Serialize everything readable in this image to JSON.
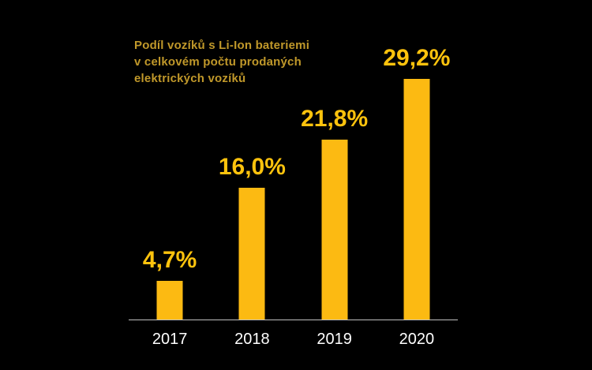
{
  "title": {
    "lines": [
      "Podíl vozíků s Li-Ion bateriemi",
      "v celkovém počtu prodaných",
      "elektrických vozíků"
    ]
  },
  "chart_data": {
    "type": "bar",
    "title": "Podíl vozíků s Li-Ion bateriemi v celkovém počtu prodaných elektrických vozíků",
    "categories": [
      "2017",
      "2018",
      "2019",
      "2020"
    ],
    "values": [
      4.7,
      16.0,
      21.8,
      29.2
    ],
    "value_labels": [
      "4,7%",
      "16,0%",
      "21,8%",
      "29,2%"
    ],
    "xlabel": "",
    "ylabel": "",
    "ylim": [
      0,
      33
    ],
    "grid": false,
    "legend": false,
    "layout_hints": {
      "background": "black",
      "value_labels_position": "above-bars",
      "x_axis_line_only": true
    },
    "colors": {
      "background": "#000000",
      "bar": "#FCBA12",
      "value_label": "#FFC30D",
      "title": "#C0982A",
      "year_label": "#FFFFFF",
      "axis_line": "#BFBFBF"
    }
  }
}
